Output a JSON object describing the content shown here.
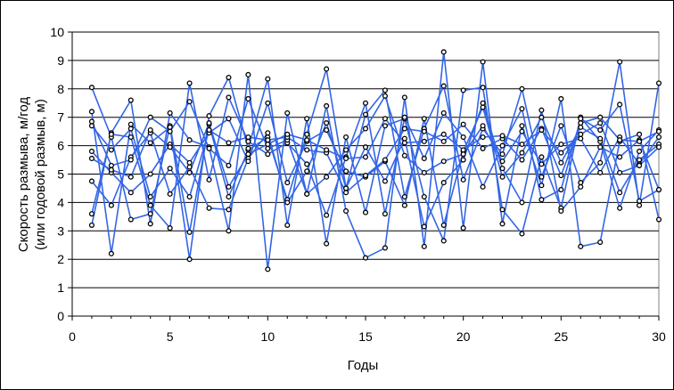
{
  "chart_data": {
    "type": "line",
    "xlabel": "Годы",
    "ylabel_line1": "Скорость размыва, м/год",
    "ylabel_line2": "(или годовой размыв, м)",
    "xlim": [
      0,
      30
    ],
    "ylim": [
      0,
      10
    ],
    "xticks": [
      0,
      5,
      10,
      15,
      20,
      25,
      30
    ],
    "yticks": [
      0,
      1,
      2,
      3,
      4,
      5,
      6,
      7,
      8,
      9,
      10
    ],
    "grid": "horizontal",
    "legend": "none",
    "colors": {
      "line": "#3366e6",
      "marker_fill": "#ffffff",
      "marker_stroke": "#000000",
      "grid": "#000000",
      "plot_border": "#808080"
    },
    "series": [
      {
        "x": [
          1,
          2,
          3,
          4,
          5,
          6,
          7,
          8,
          9,
          10,
          11,
          12,
          13,
          14,
          15,
          16,
          17,
          18,
          19,
          20,
          21,
          22,
          23,
          24,
          25,
          26,
          27,
          28,
          29,
          30
        ],
        "y": [
          8.05,
          6.3,
          3.4,
          3.6,
          6.7,
          2.95,
          6.75,
          4.2,
          5.85,
          6.3,
          4.1,
          6.4,
          8.7,
          4.5,
          7.1,
          7.95,
          4.2,
          6.6,
          8.1,
          4.8,
          6.6,
          5.7,
          8.0,
          4.9,
          6.7,
          4.7,
          5.4,
          8.95,
          3.9,
          8.2
        ]
      },
      {
        "x": [
          1,
          2,
          3,
          4,
          5,
          6,
          7,
          8,
          9,
          10,
          11,
          12,
          13,
          14,
          15,
          16,
          17,
          18,
          19,
          20,
          21,
          22,
          23,
          24,
          25,
          26,
          27,
          28,
          29,
          30
        ],
        "y": [
          3.2,
          6.45,
          7.6,
          3.25,
          7.15,
          6.2,
          5.95,
          3.0,
          8.5,
          1.65,
          7.15,
          4.3,
          7.4,
          3.7,
          2.05,
          2.4,
          7.7,
          2.45,
          9.3,
          3.1,
          8.95,
          3.25,
          6.7,
          4.6,
          7.65,
          2.45,
          2.6,
          6.15,
          6.4,
          3.4
        ]
      },
      {
        "x": [
          1,
          2,
          3,
          4,
          5,
          6,
          7,
          8,
          9,
          10,
          11,
          12,
          13,
          14,
          15,
          16,
          17,
          18,
          19,
          20,
          21,
          22,
          23,
          24,
          25,
          26,
          27,
          28,
          29,
          30
        ],
        "y": [
          7.2,
          2.2,
          6.75,
          6.1,
          6.65,
          2.0,
          7.05,
          8.4,
          5.9,
          8.35,
          3.2,
          6.95,
          2.55,
          6.3,
          3.65,
          6.7,
          6.95,
          4.2,
          2.65,
          7.95,
          8.05,
          3.75,
          2.9,
          5.6,
          3.8,
          7.0,
          6.15,
          3.8,
          5.8,
          6.55
        ]
      },
      {
        "x": [
          1,
          2,
          3,
          4,
          5,
          6,
          7,
          8,
          9,
          10,
          11,
          12,
          13,
          14,
          15,
          16,
          17,
          18,
          19,
          20,
          21,
          22,
          23,
          24,
          25,
          26,
          27,
          28,
          29,
          30
        ],
        "y": [
          3.6,
          6.4,
          6.3,
          3.9,
          3.1,
          8.2,
          4.8,
          7.7,
          6.15,
          5.7,
          6.1,
          5.35,
          3.55,
          5.6,
          7.5,
          3.6,
          7.0,
          5.55,
          7.15,
          6.3,
          4.55,
          6.0,
          7.3,
          4.1,
          4.45,
          6.95,
          6.55,
          7.45,
          4.05,
          4.45
        ]
      },
      {
        "x": [
          1,
          2,
          3,
          4,
          5,
          6,
          7,
          8,
          9,
          10,
          11,
          12,
          13,
          14,
          15,
          16,
          17,
          18,
          19,
          20,
          21,
          22,
          23,
          24,
          25,
          26,
          27,
          28,
          29,
          30
        ],
        "y": [
          4.75,
          3.9,
          5.6,
          6.45,
          4.3,
          5.25,
          3.8,
          3.75,
          5.55,
          6.45,
          4.0,
          5.1,
          6.8,
          4.5,
          5.95,
          4.75,
          6.25,
          3.15,
          4.7,
          5.5,
          7.5,
          5.2,
          4.0,
          7.25,
          3.7,
          4.55,
          5.95,
          5.6,
          6.2,
          4.45
        ]
      },
      {
        "x": [
          1,
          2,
          3,
          4,
          5,
          6,
          7,
          8,
          9,
          10,
          11,
          12,
          13,
          14,
          15,
          16,
          17,
          18,
          19,
          20,
          21,
          22,
          23,
          24,
          25,
          26,
          27,
          28,
          29,
          30
        ],
        "y": [
          5.8,
          5.05,
          4.35,
          5.0,
          6.05,
          5.4,
          6.45,
          6.95,
          5.45,
          7.5,
          4.7,
          6.15,
          6.55,
          5.1,
          4.9,
          5.45,
          3.9,
          6.95,
          3.2,
          5.8,
          7.35,
          4.9,
          5.75,
          7.0,
          5.4,
          6.65,
          6.25,
          4.35,
          5.5,
          6.05
        ]
      },
      {
        "x": [
          1,
          2,
          3,
          4,
          5,
          6,
          7,
          8,
          9,
          10,
          11,
          12,
          13,
          14,
          15,
          16,
          17,
          18,
          19,
          20,
          21,
          22,
          23,
          24,
          25,
          26,
          27,
          28,
          29,
          30
        ],
        "y": [
          6.85,
          5.3,
          5.5,
          7.0,
          6.5,
          7.55,
          5.9,
          5.3,
          7.65,
          5.9,
          6.2,
          4.3,
          4.9,
          5.85,
          6.6,
          7.75,
          5.65,
          5.05,
          5.45,
          5.7,
          6.7,
          5.45,
          6.5,
          5.35,
          6.05,
          6.25,
          5.05,
          6.3,
          5.35,
          6.3
        ]
      },
      {
        "x": [
          1,
          2,
          3,
          4,
          5,
          6,
          7,
          8,
          9,
          10,
          11,
          12,
          13,
          14,
          15,
          16,
          17,
          18,
          19,
          20,
          21,
          22,
          23,
          24,
          25,
          26,
          27,
          28,
          29,
          30
        ],
        "y": [
          6.7,
          5.85,
          6.6,
          4.2,
          5.2,
          4.2,
          6.55,
          6.1,
          6.3,
          6.2,
          6.3,
          5.85,
          5.75,
          4.35,
          4.95,
          5.5,
          6.6,
          6.5,
          6.15,
          6.75,
          5.9,
          6.25,
          5.5,
          6.6,
          4.95,
          6.8,
          7.0,
          6.2,
          6.15,
          6.5
        ]
      },
      {
        "x": [
          1,
          2,
          3,
          4,
          5,
          6,
          7,
          8,
          9,
          10,
          11,
          12,
          13,
          14,
          15,
          16,
          17,
          18,
          19,
          20,
          21,
          22,
          23,
          24,
          25,
          26,
          27,
          28,
          29,
          30
        ],
        "y": [
          5.55,
          5.15,
          4.9,
          6.55,
          5.95,
          5.05,
          6.8,
          4.55,
          5.7,
          6.05,
          6.4,
          6.2,
          5.85,
          5.55,
          5.6,
          6.95,
          6.1,
          6.15,
          6.4,
          5.85,
          6.3,
          6.35,
          6.05,
          6.55,
          5.75,
          6.4,
          6.8,
          5.05,
          5.3,
          5.95
        ]
      }
    ]
  }
}
